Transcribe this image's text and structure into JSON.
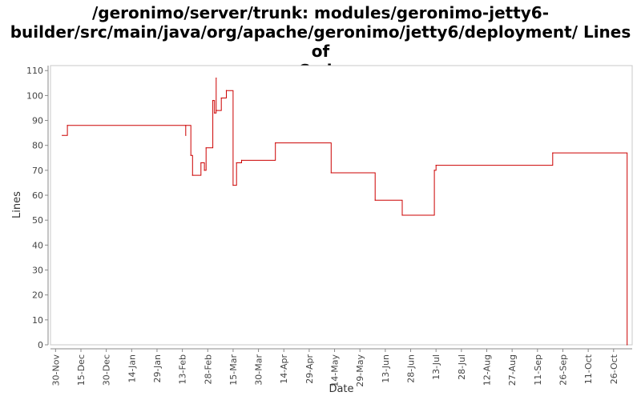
{
  "chart_data": {
    "type": "line",
    "title_lines": [
      "/geronimo/server/trunk: modules/geronimo-jetty6-",
      "builder/src/main/java/org/apache/geronimo/jetty6/deployment/ Lines of",
      "Code"
    ],
    "xlabel": "Date",
    "ylabel": "Lines",
    "ylim": [
      0,
      112
    ],
    "y_ticks": [
      0,
      10,
      20,
      30,
      40,
      50,
      60,
      70,
      80,
      90,
      100,
      110
    ],
    "x_range": [
      "2005-11-27",
      "2006-11-06"
    ],
    "x_ticks": [
      {
        "label": "30-Nov",
        "date": "2005-11-30"
      },
      {
        "label": "15-Dec",
        "date": "2005-12-15"
      },
      {
        "label": "30-Dec",
        "date": "2005-12-30"
      },
      {
        "label": "14-Jan",
        "date": "2006-01-14"
      },
      {
        "label": "29-Jan",
        "date": "2006-01-29"
      },
      {
        "label": "13-Feb",
        "date": "2006-02-13"
      },
      {
        "label": "28-Feb",
        "date": "2006-02-28"
      },
      {
        "label": "15-Mar",
        "date": "2006-03-15"
      },
      {
        "label": "30-Mar",
        "date": "2006-03-30"
      },
      {
        "label": "14-Apr",
        "date": "2006-04-14"
      },
      {
        "label": "29-Apr",
        "date": "2006-04-29"
      },
      {
        "label": "14-May",
        "date": "2006-05-14"
      },
      {
        "label": "29-May",
        "date": "2006-05-29"
      },
      {
        "label": "13-Jun",
        "date": "2006-06-13"
      },
      {
        "label": "28-Jun",
        "date": "2006-06-28"
      },
      {
        "label": "13-Jul",
        "date": "2006-07-13"
      },
      {
        "label": "28-Jul",
        "date": "2006-07-28"
      },
      {
        "label": "12-Aug",
        "date": "2006-08-12"
      },
      {
        "label": "27-Aug",
        "date": "2006-08-27"
      },
      {
        "label": "11-Sep",
        "date": "2006-09-11"
      },
      {
        "label": "26-Sep",
        "date": "2006-09-26"
      },
      {
        "label": "11-Oct",
        "date": "2006-10-11"
      },
      {
        "label": "26-Oct",
        "date": "2006-10-26"
      }
    ],
    "series": [
      {
        "color": "#cc0000",
        "step": true,
        "points": [
          {
            "x": "2005-12-04",
            "y": 84
          },
          {
            "x": "2005-12-07",
            "y": 88
          },
          {
            "x": "2006-02-15",
            "y": 84
          },
          {
            "x": "2006-02-15",
            "y": 88
          },
          {
            "x": "2006-02-18",
            "y": 76
          },
          {
            "x": "2006-02-19",
            "y": 68
          },
          {
            "x": "2006-02-24",
            "y": 73
          },
          {
            "x": "2006-02-26",
            "y": 70
          },
          {
            "x": "2006-02-27",
            "y": 79
          },
          {
            "x": "2006-03-03",
            "y": 98
          },
          {
            "x": "2006-03-04",
            "y": 93
          },
          {
            "x": "2006-03-05",
            "y": 107
          },
          {
            "x": "2006-03-05",
            "y": 94
          },
          {
            "x": "2006-03-08",
            "y": 99
          },
          {
            "x": "2006-03-11",
            "y": 102
          },
          {
            "x": "2006-03-15",
            "y": 64
          },
          {
            "x": "2006-03-17",
            "y": 73
          },
          {
            "x": "2006-03-20",
            "y": 74
          },
          {
            "x": "2006-04-09",
            "y": 81
          },
          {
            "x": "2006-05-12",
            "y": 69
          },
          {
            "x": "2006-06-07",
            "y": 58
          },
          {
            "x": "2006-06-23",
            "y": 52
          },
          {
            "x": "2006-07-12",
            "y": 70
          },
          {
            "x": "2006-07-13",
            "y": 72
          },
          {
            "x": "2006-09-20",
            "y": 77
          },
          {
            "x": "2006-11-03",
            "y": 0
          }
        ]
      }
    ]
  }
}
